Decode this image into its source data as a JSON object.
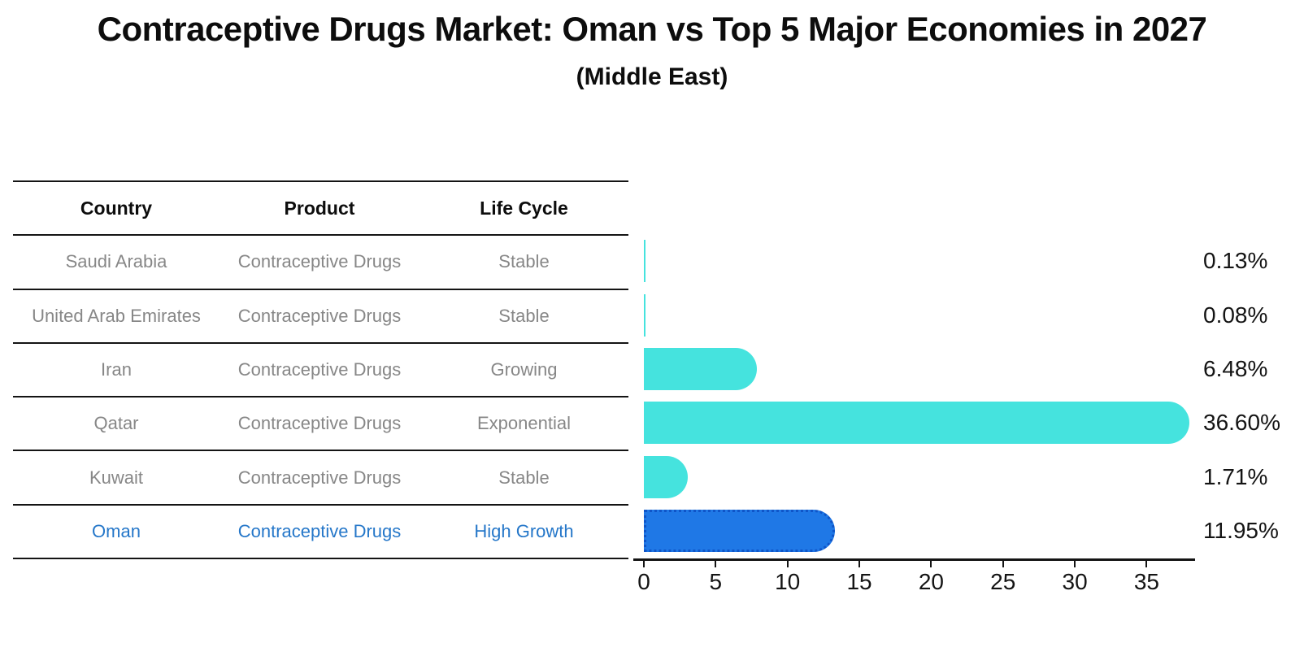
{
  "header": {
    "title": "Contraceptive Drugs Market: Oman vs Top 5 Major Economies in 2027",
    "subtitle": "(Middle East)"
  },
  "table": {
    "headers": [
      "Country",
      "Product",
      "Life Cycle"
    ],
    "rows": [
      {
        "country": "Saudi Arabia",
        "product": "Contraceptive Drugs",
        "life_cycle": "Stable",
        "highlight": false
      },
      {
        "country": "United Arab Emirates",
        "product": "Contraceptive Drugs",
        "life_cycle": "Stable",
        "highlight": false
      },
      {
        "country": "Iran",
        "product": "Contraceptive Drugs",
        "life_cycle": "Growing",
        "highlight": false
      },
      {
        "country": "Qatar",
        "product": "Contraceptive Drugs",
        "life_cycle": "Exponential",
        "highlight": false
      },
      {
        "country": "Kuwait",
        "product": "Contraceptive Drugs",
        "life_cycle": "Stable",
        "highlight": true
      }
    ]
  },
  "oman_row": {
    "country": "Oman",
    "product": "Contraceptive Drugs",
    "life_cycle": "High Growth"
  },
  "chart_data": {
    "type": "bar",
    "orientation": "horizontal",
    "title": "Contraceptive Drugs Market: Oman vs Top 5 Major Economies in 2027 (Middle East)",
    "categories": [
      "Saudi Arabia",
      "United Arab Emirates",
      "Iran",
      "Qatar",
      "Kuwait",
      "Oman"
    ],
    "values": [
      0.13,
      0.08,
      6.48,
      36.6,
      1.71,
      11.95
    ],
    "value_labels": [
      "0.13%",
      "0.08%",
      "6.48%",
      "36.60%",
      "1.71%",
      "11.95%"
    ],
    "unit": "percent",
    "x_ticks": [
      0,
      5,
      10,
      15,
      20,
      25,
      30,
      35
    ],
    "xlim": [
      0,
      38.4
    ],
    "grid": false,
    "legend": "none",
    "highlight_index": 5,
    "colors": {
      "bar": "#45E3DE",
      "highlight_bar": "#1F78E6",
      "highlight_edge": "#0F55C8",
      "highlight_text": "#2577C9",
      "row_text": "#878787",
      "line": "#141414"
    }
  }
}
